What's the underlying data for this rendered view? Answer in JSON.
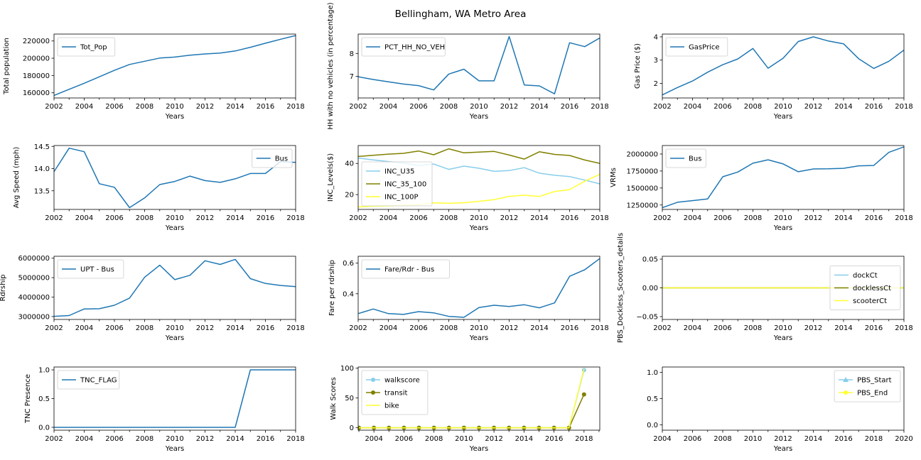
{
  "figure": {
    "suptitle": "Bellingham, WA Metro Area"
  },
  "colors": {
    "default": "#1f77b4",
    "skyblue": "#87ceeb",
    "olive": "#808000",
    "yellow": "#ffff33"
  },
  "chart_data": [
    {
      "id": "population",
      "type": "line",
      "xlabel": "Years",
      "ylabel": "Total population",
      "xlim": [
        2002,
        2018
      ],
      "ylim": [
        154000,
        228000
      ],
      "xticks": [
        2002,
        2004,
        2006,
        2008,
        2010,
        2012,
        2014,
        2016,
        2018
      ],
      "yticks": [
        160000,
        180000,
        200000,
        220000
      ],
      "legend": "upper-left",
      "series": [
        {
          "name": "Tot_Pop",
          "color": "#1f77b4",
          "marker": false,
          "x": [
            2002,
            2003,
            2004,
            2005,
            2006,
            2007,
            2008,
            2009,
            2010,
            2011,
            2012,
            2013,
            2014,
            2015,
            2016,
            2017,
            2018
          ],
          "y": [
            157000,
            164000,
            171000,
            178500,
            186000,
            192800,
            196500,
            200200,
            201400,
            203600,
            205000,
            206000,
            208400,
            212700,
            217400,
            222000,
            226300
          ]
        }
      ]
    },
    {
      "id": "no-vehicles",
      "type": "line",
      "xlabel": "Years",
      "ylabel": "HH with no vehicles (in percentage)",
      "xlim": [
        2002,
        2018
      ],
      "ylim": [
        6.05,
        8.85
      ],
      "xticks": [
        2002,
        2004,
        2006,
        2008,
        2010,
        2012,
        2014,
        2016,
        2018
      ],
      "yticks": [
        7,
        8
      ],
      "legend": "upper-left",
      "series": [
        {
          "name": "PCT_HH_NO_VEH",
          "color": "#1f77b4",
          "marker": false,
          "x": [
            2002,
            2003,
            2004,
            2005,
            2006,
            2007,
            2008,
            2009,
            2010,
            2011,
            2012,
            2013,
            2014,
            2015,
            2016,
            2017,
            2018
          ],
          "y": [
            6.98,
            6.86,
            6.76,
            6.66,
            6.59,
            6.4,
            7.1,
            7.31,
            6.8,
            6.8,
            8.74,
            6.62,
            6.58,
            6.23,
            8.47,
            8.3,
            8.68
          ]
        }
      ]
    },
    {
      "id": "gas-price",
      "type": "line",
      "xlabel": "Years",
      "ylabel": "Gas Price ($)",
      "xlim": [
        2002,
        2018
      ],
      "ylim": [
        1.37,
        4.12
      ],
      "xticks": [
        2002,
        2004,
        2006,
        2008,
        2010,
        2012,
        2014,
        2016,
        2018
      ],
      "yticks": [
        2,
        3,
        4
      ],
      "legend": "upper-left",
      "series": [
        {
          "name": "GasPrice",
          "color": "#1f77b4",
          "marker": false,
          "x": [
            2002,
            2003,
            2004,
            2005,
            2006,
            2007,
            2008,
            2009,
            2010,
            2011,
            2012,
            2013,
            2014,
            2015,
            2016,
            2017,
            2018
          ],
          "y": [
            1.5,
            1.82,
            2.1,
            2.48,
            2.8,
            3.05,
            3.5,
            2.65,
            3.08,
            3.8,
            4.0,
            3.82,
            3.7,
            3.06,
            2.64,
            2.95,
            3.43
          ]
        }
      ]
    },
    {
      "id": "avg-speed",
      "type": "line",
      "xlabel": "Years",
      "ylabel": "Avg Speed (mph)",
      "xlim": [
        2002,
        2018
      ],
      "ylim": [
        13.08,
        14.52
      ],
      "xticks": [
        2002,
        2004,
        2006,
        2008,
        2010,
        2012,
        2014,
        2016,
        2018
      ],
      "yticks": [
        13.5,
        14.0,
        14.5
      ],
      "ytick_labels": [
        "13.5",
        "14.0",
        "14.5"
      ],
      "legend": "upper-right",
      "series": [
        {
          "name": "Bus",
          "color": "#1f77b4",
          "marker": false,
          "x": [
            2002,
            2003,
            2004,
            2005,
            2006,
            2007,
            2008,
            2009,
            2010,
            2011,
            2012,
            2013,
            2014,
            2015,
            2016,
            2017,
            2018
          ],
          "y": [
            13.93,
            14.46,
            14.38,
            13.66,
            13.58,
            13.12,
            13.34,
            13.64,
            13.71,
            13.83,
            13.73,
            13.69,
            13.77,
            13.89,
            13.89,
            14.16,
            14.14
          ]
        }
      ]
    },
    {
      "id": "income-levels",
      "type": "line",
      "xlabel": "Years",
      "ylabel": "INC_Levels($)",
      "xlim": [
        2002,
        2018
      ],
      "ylim": [
        10.5,
        51.5
      ],
      "xticks": [
        2002,
        2004,
        2006,
        2008,
        2010,
        2012,
        2014,
        2016,
        2018
      ],
      "yticks": [
        20,
        40
      ],
      "legend": "lower-left",
      "series": [
        {
          "name": "INC_U35",
          "color": "#87ceeb",
          "marker": false,
          "x": [
            2002,
            2003,
            2004,
            2005,
            2006,
            2007,
            2008,
            2009,
            2010,
            2011,
            2012,
            2013,
            2014,
            2015,
            2016,
            2017,
            2018
          ],
          "y": [
            43.5,
            42.3,
            41.2,
            40.2,
            38.6,
            39.6,
            36.2,
            38.3,
            36.9,
            34.9,
            35.4,
            37.3,
            33.8,
            32.4,
            31.6,
            29.3,
            26.9
          ]
        },
        {
          "name": "INC_35_100",
          "color": "#808000",
          "marker": false,
          "x": [
            2002,
            2003,
            2004,
            2005,
            2006,
            2007,
            2008,
            2009,
            2010,
            2011,
            2012,
            2013,
            2014,
            2015,
            2016,
            2017,
            2018
          ],
          "y": [
            44.5,
            45.2,
            46.0,
            46.5,
            48.0,
            45.6,
            49.4,
            46.8,
            47.3,
            47.7,
            45.4,
            42.8,
            47.5,
            45.8,
            45.1,
            42.2,
            40.0
          ]
        },
        {
          "name": "INC_100P",
          "color": "#ffff33",
          "marker": false,
          "x": [
            2002,
            2003,
            2004,
            2005,
            2006,
            2007,
            2008,
            2009,
            2010,
            2011,
            2012,
            2013,
            2014,
            2015,
            2016,
            2017,
            2018
          ],
          "y": [
            12.1,
            12.6,
            12.8,
            13.2,
            13.5,
            14.7,
            14.4,
            14.8,
            15.7,
            16.8,
            18.9,
            19.6,
            18.8,
            22.0,
            23.2,
            28.6,
            33.0
          ]
        }
      ]
    },
    {
      "id": "vrms",
      "type": "line",
      "xlabel": "Years",
      "ylabel": "VRMs",
      "xlim": [
        2002,
        2018
      ],
      "ylim": [
        1185000,
        2125000
      ],
      "xticks": [
        2002,
        2004,
        2006,
        2008,
        2010,
        2012,
        2014,
        2016,
        2018
      ],
      "yticks": [
        1250000,
        1500000,
        1750000,
        2000000
      ],
      "legend": "upper-left",
      "series": [
        {
          "name": "Bus",
          "color": "#1f77b4",
          "marker": false,
          "x": [
            2002,
            2003,
            2004,
            2005,
            2006,
            2007,
            2008,
            2009,
            2010,
            2011,
            2012,
            2013,
            2014,
            2015,
            2016,
            2017,
            2018
          ],
          "y": [
            1210000,
            1290000,
            1315000,
            1340000,
            1665000,
            1735000,
            1865000,
            1915000,
            1855000,
            1740000,
            1780000,
            1782000,
            1790000,
            1826000,
            1832000,
            2025000,
            2105000
          ]
        }
      ]
    },
    {
      "id": "ridership",
      "type": "line",
      "xlabel": "Years",
      "ylabel": "Rdrship",
      "xlim": [
        2002,
        2018
      ],
      "ylim": [
        2850000,
        6100000
      ],
      "xticks": [
        2002,
        2004,
        2006,
        2008,
        2010,
        2012,
        2014,
        2016,
        2018
      ],
      "yticks": [
        3000000,
        4000000,
        5000000,
        6000000
      ],
      "legend": "upper-left",
      "series": [
        {
          "name": "UPT - Bus",
          "color": "#1f77b4",
          "marker": false,
          "x": [
            2002,
            2003,
            2004,
            2005,
            2006,
            2007,
            2008,
            2009,
            2010,
            2011,
            2012,
            2013,
            2014,
            2015,
            2016,
            2017,
            2018
          ],
          "y": [
            3010000,
            3050000,
            3390000,
            3400000,
            3580000,
            3950000,
            5020000,
            5640000,
            4900000,
            5120000,
            5870000,
            5680000,
            5940000,
            4950000,
            4700000,
            4600000,
            4540000
          ]
        }
      ]
    },
    {
      "id": "fare-per-rider",
      "type": "line",
      "xlabel": "Years",
      "ylabel": "Fare per rdrship",
      "xlim": [
        2002,
        2018
      ],
      "ylim": [
        0.232,
        0.645
      ],
      "xticks": [
        2002,
        2004,
        2006,
        2008,
        2010,
        2012,
        2014,
        2016,
        2018
      ],
      "yticks": [
        0.4,
        0.6
      ],
      "ytick_labels": [
        "0.4",
        "0.6"
      ],
      "legend": "upper-left",
      "series": [
        {
          "name": "Fare/Rdr - Bus",
          "color": "#1f77b4",
          "marker": false,
          "x": [
            2002,
            2003,
            2004,
            2005,
            2006,
            2007,
            2008,
            2009,
            2010,
            2011,
            2012,
            2013,
            2014,
            2015,
            2016,
            2017,
            2018
          ],
          "y": [
            0.27,
            0.3,
            0.27,
            0.265,
            0.283,
            0.275,
            0.252,
            0.246,
            0.31,
            0.325,
            0.317,
            0.328,
            0.308,
            0.34,
            0.514,
            0.557,
            0.63
          ]
        }
      ]
    },
    {
      "id": "dockless-scooters",
      "type": "line",
      "xlabel": "Years",
      "ylabel": "PBS_Dockless_Scooters_details",
      "xlim": [
        2002,
        2018
      ],
      "ylim": [
        -0.055,
        0.055
      ],
      "xticks": [
        2002,
        2004,
        2006,
        2008,
        2010,
        2012,
        2014,
        2016,
        2018
      ],
      "yticks": [
        -0.05,
        0.0,
        0.05
      ],
      "ytick_labels": [
        "−0.05",
        "0.00",
        "0.05"
      ],
      "legend": "right",
      "series": [
        {
          "name": "dockCt",
          "color": "#87ceeb",
          "marker": false,
          "x": [
            2002,
            2018
          ],
          "y": [
            0,
            0
          ]
        },
        {
          "name": "docklessCt",
          "color": "#808000",
          "marker": false,
          "x": [
            2002,
            2018
          ],
          "y": [
            0,
            0
          ]
        },
        {
          "name": "scooterCt",
          "color": "#ffff33",
          "marker": false,
          "x": [
            2002,
            2018
          ],
          "y": [
            0,
            0
          ]
        }
      ]
    },
    {
      "id": "tnc-presence",
      "type": "line",
      "xlabel": "Years",
      "ylabel": "TNC Presence",
      "xlim": [
        2002,
        2018
      ],
      "ylim": [
        -0.05,
        1.05
      ],
      "xticks": [
        2002,
        2004,
        2006,
        2008,
        2010,
        2012,
        2014,
        2016,
        2018
      ],
      "yticks": [
        0.0,
        0.5,
        1.0
      ],
      "ytick_labels": [
        "0.0",
        "0.5",
        "1.0"
      ],
      "legend": "upper-left",
      "series": [
        {
          "name": "TNC_FLAG",
          "color": "#1f77b4",
          "marker": false,
          "x": [
            2002,
            2014,
            2015,
            2018
          ],
          "y": [
            0,
            0,
            1,
            1
          ]
        }
      ]
    },
    {
      "id": "walk-scores",
      "type": "line",
      "xlabel": "Years",
      "ylabel": "Walk Scores",
      "xlim": [
        2002.95,
        2019.05
      ],
      "ylim": [
        -4,
        102
      ],
      "xticks": [
        2004,
        2006,
        2008,
        2010,
        2012,
        2014,
        2016,
        2018
      ],
      "yticks": [
        0,
        50,
        100
      ],
      "legend": "upper-left",
      "series": [
        {
          "name": "walkscore",
          "color": "#87ceeb",
          "marker": true,
          "x": [
            2003,
            2004,
            2005,
            2006,
            2007,
            2008,
            2009,
            2010,
            2011,
            2012,
            2013,
            2014,
            2015,
            2016,
            2017,
            2018
          ],
          "y": [
            0,
            0,
            0,
            0,
            0,
            0,
            0,
            0,
            0,
            0,
            0,
            0,
            0,
            0,
            0,
            97
          ]
        },
        {
          "name": "transit",
          "color": "#808000",
          "marker": true,
          "x": [
            2003,
            2004,
            2005,
            2006,
            2007,
            2008,
            2009,
            2010,
            2011,
            2012,
            2013,
            2014,
            2015,
            2016,
            2017,
            2018
          ],
          "y": [
            0,
            0,
            0,
            0,
            0,
            0,
            0,
            0,
            0,
            0,
            0,
            0,
            0,
            0,
            0,
            56
          ]
        },
        {
          "name": "bike",
          "color": "#ffff33",
          "marker": false,
          "x": [
            2003,
            2004,
            2005,
            2006,
            2007,
            2008,
            2009,
            2010,
            2011,
            2012,
            2013,
            2014,
            2015,
            2016,
            2017,
            2018
          ],
          "y": [
            0,
            0,
            0,
            0,
            0,
            0,
            0,
            0,
            0,
            0,
            0,
            0,
            0,
            0,
            0,
            99
          ]
        }
      ]
    },
    {
      "id": "pbs-start-end",
      "type": "line",
      "xlabel": "Years",
      "ylabel": "",
      "xlim": [
        2004,
        2020
      ],
      "ylim": [
        -0.1,
        1.1
      ],
      "xticks": [
        2004,
        2006,
        2008,
        2010,
        2012,
        2014,
        2016,
        2018,
        2020
      ],
      "yticks": [
        0.0,
        0.5,
        1.0
      ],
      "ytick_labels": [
        "0.0",
        "0.5",
        "1.0"
      ],
      "legend": "upper-right",
      "series": [
        {
          "name": "PBS_Start",
          "color": "#87ceeb",
          "marker": true,
          "marker_shape": "triangle",
          "x": [],
          "y": []
        },
        {
          "name": "PBS_End",
          "color": "#ffff33",
          "marker": true,
          "marker_shape": "circle",
          "x": [],
          "y": []
        }
      ]
    }
  ]
}
